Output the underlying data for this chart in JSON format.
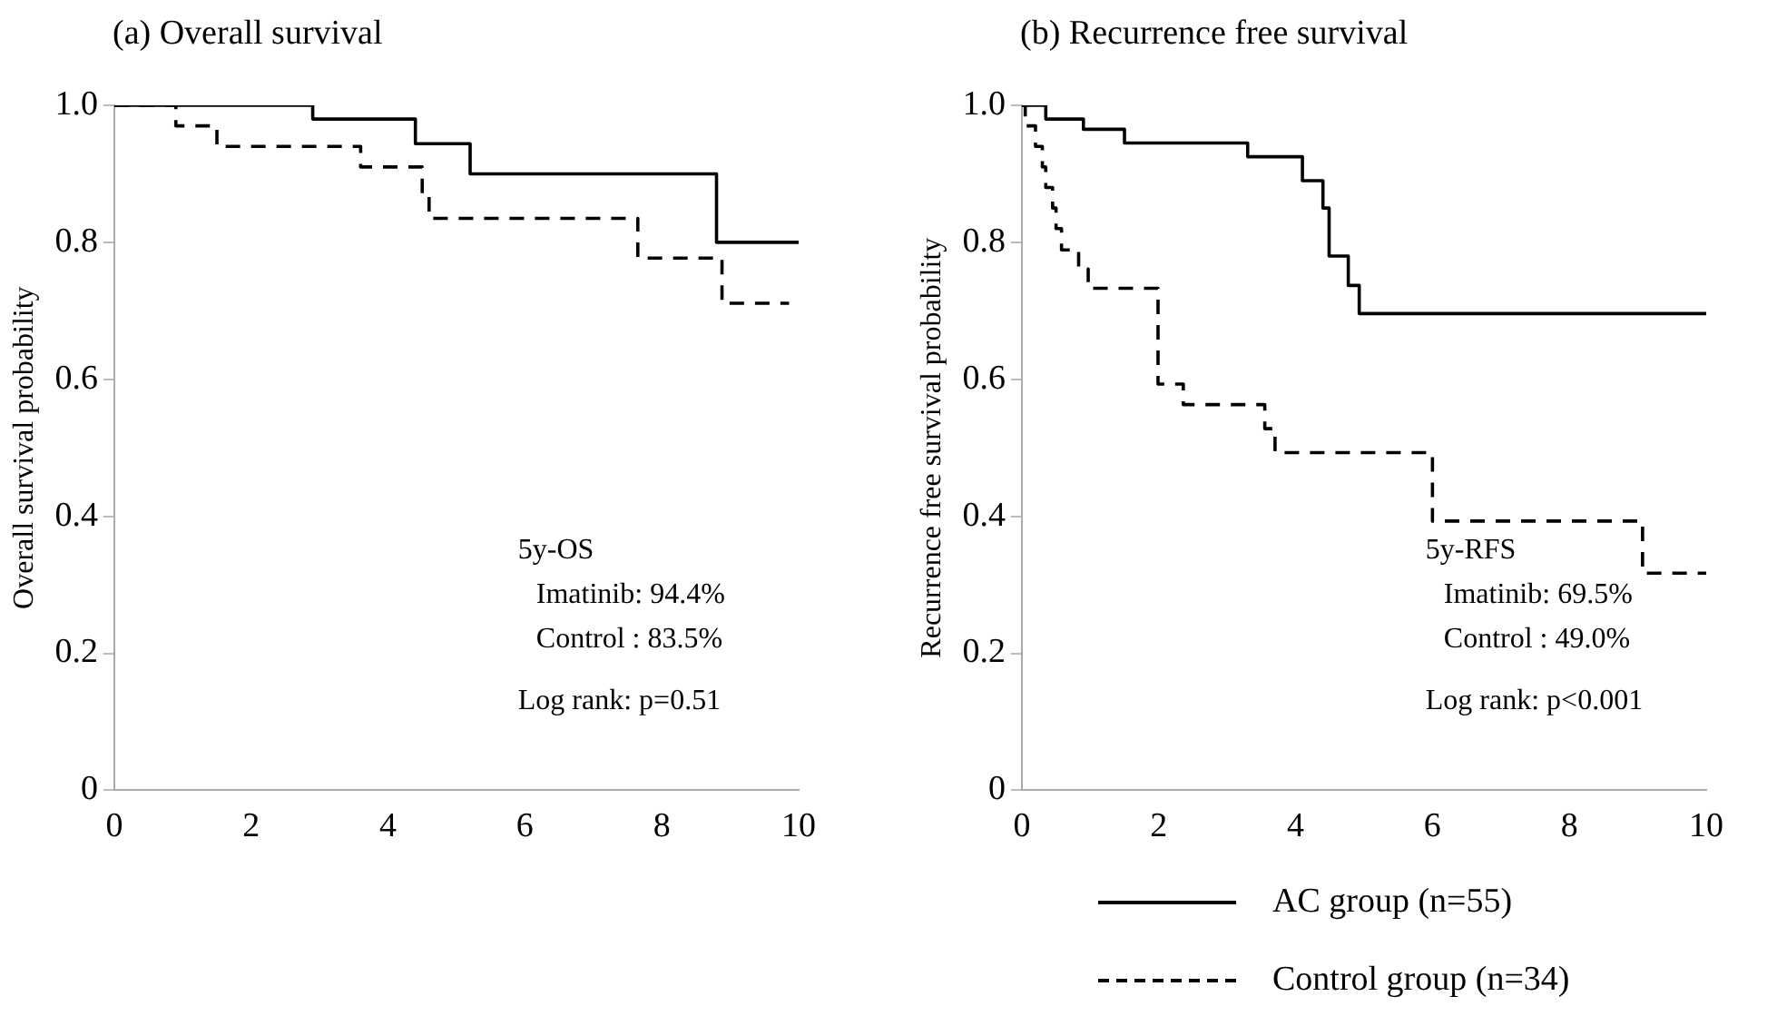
{
  "chart_data": [
    {
      "type": "step",
      "title": "(a) Overall survival",
      "ylabel": "Overall survival probability",
      "xlim": [
        0,
        10
      ],
      "xticks": [
        0,
        2,
        4,
        6,
        8,
        10
      ],
      "ylim": [
        0,
        1
      ],
      "yticks": [
        0,
        {
          "value": 0.2,
          "label": "0.2"
        },
        {
          "value": 0.4,
          "label": "0.4"
        },
        {
          "value": 0.6,
          "label": "0.6"
        },
        {
          "value": 0.8,
          "label": "0.8"
        },
        {
          "value": 1,
          "label": "1.0"
        }
      ],
      "grid": false,
      "legend": false,
      "marker": "none",
      "series": [
        {
          "color": "#000000",
          "line_style": "solid",
          "x": [
            0,
            2.9,
            4.4,
            5.2,
            8.8,
            10
          ],
          "values": [
            1,
            0.98,
            0.944,
            0.9,
            0.8,
            0.8
          ]
        },
        {
          "color": "#000000",
          "line_style": "dashed",
          "x": [
            0,
            0.9,
            1.5,
            3.6,
            4.5,
            4.6,
            7.65,
            8.88,
            9.86
          ],
          "values": [
            1,
            0.97,
            0.94,
            0.91,
            0.87,
            0.835,
            0.777,
            0.711,
            0.711
          ]
        }
      ],
      "annotations": [
        "5y-OS",
        "Imatinib: 94.4%",
        "Control : 83.5%",
        "Log rank: p=0.51"
      ]
    },
    {
      "type": "step",
      "title": "(b) Recurrence free survival",
      "ylabel": "Recurrence free survival probability",
      "xlim": [
        0,
        10
      ],
      "xticks": [
        0,
        2,
        4,
        6,
        8,
        10
      ],
      "ylim": [
        0,
        1
      ],
      "yticks": [
        0,
        {
          "value": 0.2,
          "label": "0.2"
        },
        {
          "value": 0.4,
          "label": "0.4"
        },
        {
          "value": 0.6,
          "label": "0.6"
        },
        {
          "value": 0.8,
          "label": "0.8"
        },
        {
          "value": 1,
          "label": "1.0"
        }
      ],
      "grid": false,
      "legend": "bottom right",
      "marker": "none",
      "series": [
        {
          "name": "AC group (n=55)",
          "color": "#000000",
          "line_style": "solid",
          "x": [
            0,
            0.35,
            0.9,
            1.5,
            3.3,
            4.1,
            4.4,
            4.49,
            4.77,
            4.93,
            10
          ],
          "values": [
            1,
            0.98,
            0.965,
            0.945,
            0.925,
            0.89,
            0.85,
            0.78,
            0.737,
            0.696,
            0.696
          ]
        },
        {
          "name": "Control group (n=34)",
          "color": "#000000",
          "line_style": "dashed",
          "x": [
            0,
            0.05,
            0.2,
            0.3,
            0.35,
            0.45,
            0.5,
            0.58,
            0.83,
            0.97,
            1.99,
            2.36,
            3.55,
            3.7,
            6.0,
            9.07,
            10
          ],
          "values": [
            1,
            0.97,
            0.94,
            0.91,
            0.88,
            0.85,
            0.82,
            0.789,
            0.761,
            0.733,
            0.593,
            0.563,
            0.528,
            0.493,
            0.393,
            0.317,
            0.317
          ]
        }
      ],
      "annotations": [
        "5y-RFS",
        "Imatinib: 69.5%",
        "Control : 49.0%",
        "Log rank: p<0.001"
      ]
    }
  ]
}
